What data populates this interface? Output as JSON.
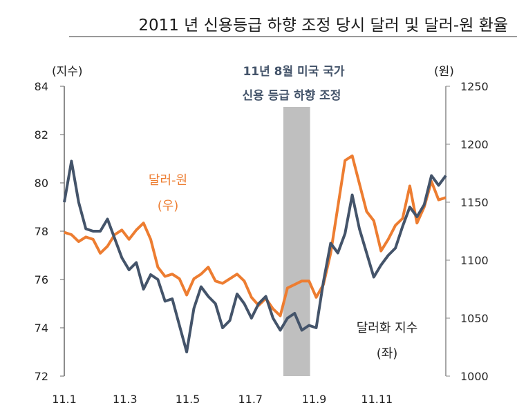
{
  "chart_data": {
    "type": "line",
    "title": "2011 년 신용등급 하향 조정 당시 달러 및 달러-원 환율",
    "left_axis": {
      "unit_label": "(지수)",
      "ylim": [
        72,
        84
      ],
      "ticks": [
        "72",
        "74",
        "76",
        "78",
        "80",
        "82",
        "84"
      ]
    },
    "right_axis": {
      "unit_label": "(원)",
      "ylim": [
        1000,
        1250
      ],
      "ticks": [
        "1000",
        "1050",
        "1100",
        "1150",
        "1200",
        "1250"
      ]
    },
    "x_range": [
      "2011-01-01",
      "2012-01-07"
    ],
    "x_ticks": [
      {
        "label": "11.1",
        "date": "2011-01-01"
      },
      {
        "label": "11.3",
        "date": "2011-03-01"
      },
      {
        "label": "11.5",
        "date": "2011-05-01"
      },
      {
        "label": "11.7",
        "date": "2011-07-01"
      },
      {
        "label": "11.9",
        "date": "2011-09-01"
      },
      {
        "label": "11.11",
        "date": "2011-11-01"
      }
    ],
    "grid": false,
    "highlight_band": {
      "start": "2011-08-02",
      "end": "2011-08-28",
      "color": "#bfbfbf",
      "annotation": [
        "11년 8월 미국 국가",
        "신용 등급 하향 조정"
      ]
    },
    "x": [
      "2011-01-01",
      "2011-01-08",
      "2011-01-15",
      "2011-01-22",
      "2011-01-29",
      "2011-02-05",
      "2011-02-12",
      "2011-02-19",
      "2011-02-26",
      "2011-03-05",
      "2011-03-12",
      "2011-03-19",
      "2011-03-26",
      "2011-04-02",
      "2011-04-09",
      "2011-04-16",
      "2011-04-23",
      "2011-04-30",
      "2011-05-07",
      "2011-05-14",
      "2011-05-21",
      "2011-05-28",
      "2011-06-04",
      "2011-06-11",
      "2011-06-18",
      "2011-06-25",
      "2011-07-02",
      "2011-07-09",
      "2011-07-16",
      "2011-07-23",
      "2011-07-30",
      "2011-08-06",
      "2011-08-13",
      "2011-08-20",
      "2011-08-27",
      "2011-09-03",
      "2011-09-10",
      "2011-09-17",
      "2011-09-24",
      "2011-10-01",
      "2011-10-08",
      "2011-10-15",
      "2011-10-22",
      "2011-10-29",
      "2011-11-05",
      "2011-11-12",
      "2011-11-19",
      "2011-11-26",
      "2011-12-03",
      "2011-12-10",
      "2011-12-17",
      "2011-12-24",
      "2011-12-31",
      "2012-01-07"
    ],
    "series": [
      {
        "name": "달러-원",
        "axis": "right",
        "label_lines": [
          "달러-원",
          "(우)"
        ],
        "color": "#ed7d31",
        "values": [
          1124,
          1122,
          1116,
          1120,
          1118,
          1106,
          1112,
          1122,
          1126,
          1118,
          1126,
          1132,
          1118,
          1094,
          1086,
          1088,
          1084,
          1070,
          1084,
          1088,
          1094,
          1082,
          1080,
          1084,
          1088,
          1082,
          1068,
          1061,
          1067,
          1058,
          1052,
          1076,
          1079,
          1082,
          1082,
          1068,
          1079,
          1106,
          1146,
          1186,
          1190,
          1166,
          1142,
          1134,
          1108,
          1118,
          1130,
          1136,
          1164,
          1132,
          1146,
          1168,
          1152,
          1154
        ]
      },
      {
        "name": "달러화 지수",
        "axis": "left",
        "label_lines": [
          "달러화 지수",
          "(좌)"
        ],
        "color": "#44546a",
        "values": [
          79.2,
          80.9,
          79.2,
          78.1,
          78.0,
          78.0,
          78.5,
          77.7,
          76.9,
          76.4,
          76.7,
          75.6,
          76.2,
          76.0,
          75.1,
          75.2,
          74.1,
          73.0,
          74.8,
          75.7,
          75.3,
          75.0,
          74.0,
          74.3,
          75.4,
          75.0,
          74.4,
          75.0,
          75.3,
          74.4,
          73.9,
          74.4,
          74.6,
          73.9,
          74.1,
          74.0,
          75.9,
          77.5,
          77.1,
          77.9,
          79.5,
          78.1,
          77.1,
          76.1,
          76.6,
          77.0,
          77.3,
          78.2,
          79.0,
          78.6,
          79.1,
          80.3,
          79.9,
          80.3
        ]
      }
    ]
  }
}
